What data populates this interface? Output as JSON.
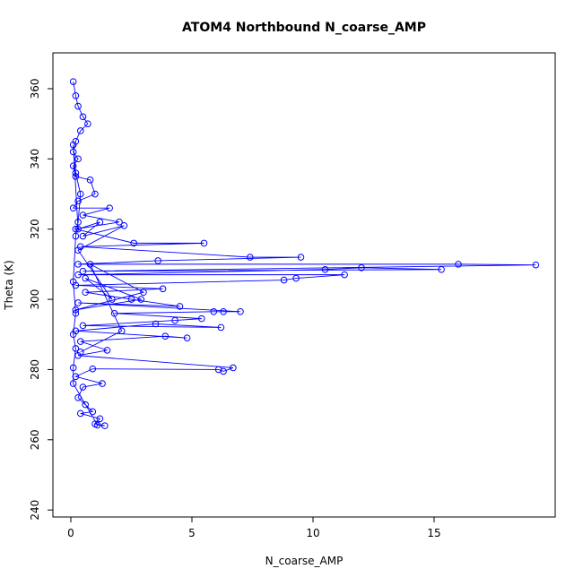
{
  "chart_data": {
    "type": "line",
    "title": "ATOM4 Northbound N_coarse_AMP",
    "x_label": "N_coarse_AMP",
    "y_label": "Theta (K)",
    "series": [
      {
        "name": "N_coarse_AMP",
        "color": "#0000ff",
        "x": [
          0.1,
          0.2,
          0.3,
          0.5,
          0.7,
          0.4,
          0.2,
          0.1,
          0.3,
          0.1,
          0.2,
          0.8,
          1.0,
          0.3,
          0.1,
          1.6,
          0.5,
          2.0,
          0.2,
          2.6,
          5.5,
          0.4,
          7.4,
          9.5,
          3.6,
          0.3,
          16.0,
          19.2,
          0.5,
          15.3,
          12.0,
          10.5,
          0.3,
          11.3,
          9.3,
          8.8,
          0.2,
          3.8,
          0.6,
          2.5,
          4.5,
          0.3,
          7.0,
          6.3,
          5.9,
          1.8,
          5.4,
          4.3,
          0.5,
          6.2,
          3.5,
          0.2,
          4.8,
          3.9,
          0.4,
          1.5,
          0.3,
          6.7,
          6.3,
          6.1,
          0.9,
          0.2,
          1.3,
          0.5,
          0.3,
          0.6,
          0.9,
          0.4,
          1.2,
          1.0,
          1.4,
          1.1,
          0.1,
          0.1,
          0.2,
          0.1,
          0.2,
          0.1,
          0.2,
          0.3,
          0.4,
          0.2,
          0.1,
          0.3,
          1.2,
          0.5,
          2.2,
          0.3,
          1.7,
          0.6,
          2.9,
          0.2,
          3.0,
          0.8,
          2.1,
          0.4
        ],
        "values": [
          362,
          358,
          355,
          352,
          350,
          348,
          345,
          342,
          340,
          338,
          335,
          334,
          330,
          328,
          326,
          326,
          324,
          322,
          320,
          316,
          316,
          315,
          312,
          312,
          311,
          310,
          310,
          309.8,
          308,
          308.5,
          309,
          308.5,
          307,
          307,
          306,
          305.5,
          304,
          303,
          302,
          300,
          298,
          299,
          296.5,
          296.5,
          296.5,
          296,
          294.5,
          294,
          292.5,
          292,
          293,
          291,
          289,
          289.5,
          288,
          285.5,
          284,
          280.5,
          279.5,
          280,
          280.2,
          278,
          276,
          275,
          272,
          270,
          268,
          267.5,
          266,
          264.5,
          264,
          264.2,
          276,
          280.5,
          286,
          290,
          296,
          305,
          318,
          322,
          330,
          336,
          344,
          320,
          322,
          318,
          321,
          314,
          300,
          306,
          300,
          297,
          302,
          310,
          291,
          285
        ]
      }
    ],
    "xlim": [
      -0.74,
      20.0
    ],
    "ylim": [
      238.0,
      370.2
    ],
    "xticks": [
      0,
      5,
      10,
      15
    ],
    "yticks": [
      240,
      260,
      280,
      300,
      320,
      340,
      360
    ]
  }
}
